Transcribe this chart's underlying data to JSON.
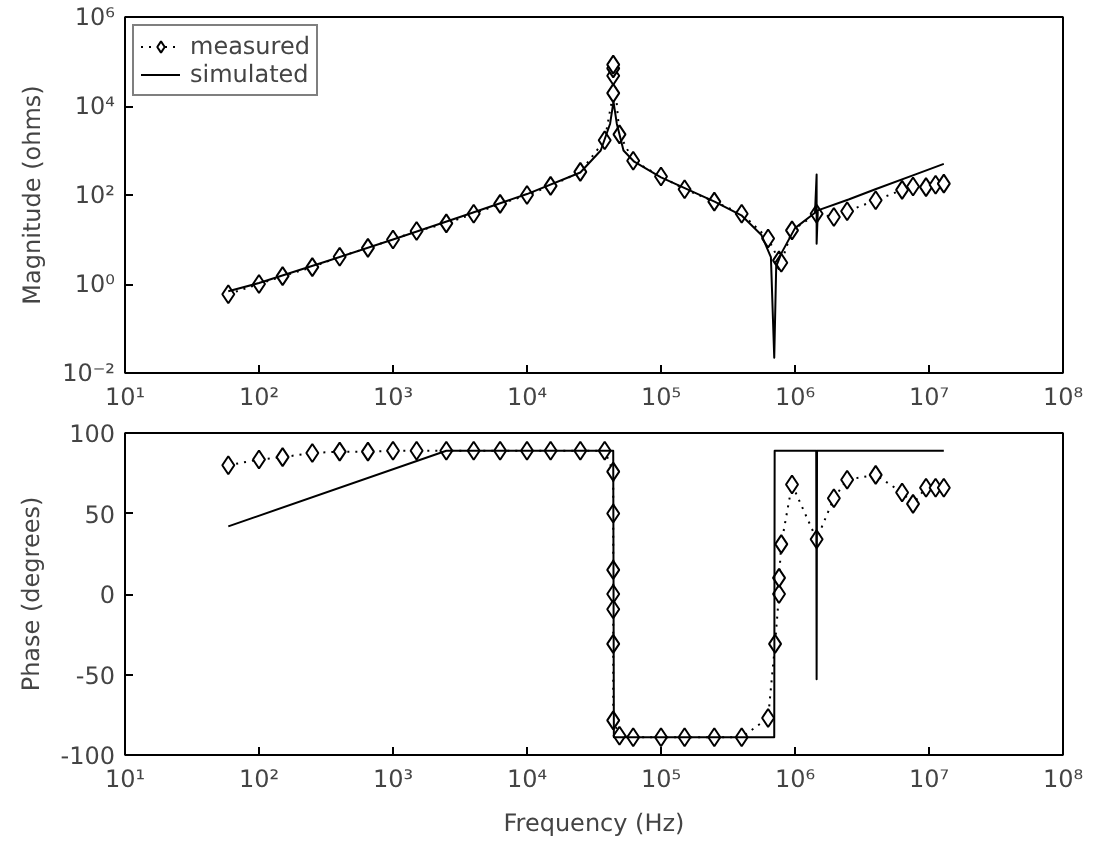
{
  "chart_data": [
    {
      "type": "line",
      "ylabel": "Magnitude (ohms)",
      "log": "xy",
      "legend": "top left",
      "xlim": [
        10,
        100000000
      ],
      "ylim": [
        0.01,
        1000000
      ],
      "xticks": [
        {
          "value": 10,
          "label": "10¹"
        },
        {
          "value": 100,
          "label": "10²"
        },
        {
          "value": 1000,
          "label": "10³"
        },
        {
          "value": 10000,
          "label": "10⁴"
        },
        {
          "value": 100000,
          "label": "10⁵"
        },
        {
          "value": 1000000,
          "label": "10⁶"
        },
        {
          "value": 10000000,
          "label": "10⁷"
        },
        {
          "value": 100000000,
          "label": "10⁸"
        }
      ],
      "yticks": [
        {
          "value": 0.01,
          "label": "10⁻²"
        },
        {
          "value": 1,
          "label": "10⁰"
        },
        {
          "value": 100,
          "label": "10²"
        },
        {
          "value": 10000,
          "label": "10⁴"
        },
        {
          "value": 1000000,
          "label": "10⁶"
        }
      ],
      "series": [
        {
          "name": "measured",
          "color": "#000000",
          "marker": "diamond",
          "line_style": "dotted",
          "x": [
            59,
            100,
            150,
            250,
            400,
            650,
            1000,
            1500,
            2500,
            4000,
            6300,
            10000,
            15000,
            25000,
            38000,
            44000,
            44000,
            44000,
            44000,
            49000,
            62000,
            100000,
            150000,
            250000,
            400000,
            630000,
            760000,
            790000,
            950000,
            1450000,
            1950000,
            2450000,
            4000000,
            6300000,
            7600000,
            9500000,
            11200000,
            12900000
          ],
          "values": [
            0.59,
            1.0,
            1.5,
            2.4,
            4.1,
            6.5,
            10,
            15.5,
            23,
            38,
            63,
            100,
            160,
            330,
            1700,
            19500,
            48000,
            70000,
            85000,
            2300,
            590,
            260,
            135,
            71,
            38,
            10.5,
            3.4,
            3.0,
            16,
            38,
            32,
            43,
            76,
            130,
            155,
            150,
            170,
            180
          ]
        },
        {
          "name": "simulated",
          "color": "#000000",
          "marker": "none",
          "line_style": "solid",
          "x": [
            59,
            100,
            316,
            1000,
            3160,
            10000,
            25000,
            35500,
            41700,
            44200,
            46800,
            52500,
            63100,
            100000,
            251000,
            398000,
            562000,
            661000,
            700000,
            724000,
            794000,
            1000000,
            1410000,
            1450000,
            1450000,
            1480000,
            2510000,
            3980000,
            7940000,
            12900000
          ],
          "values": [
            0.69,
            1.05,
            3.2,
            10,
            32,
            105,
            320,
            1000,
            4000,
            12600,
            4000,
            1000,
            560,
            250,
            71,
            35,
            12.6,
            4,
            0.022,
            2.5,
            5,
            18,
            40,
            290,
            8,
            45,
            79,
            135,
            290,
            500
          ]
        }
      ]
    },
    {
      "type": "line",
      "xlabel": "Frequency (Hz)",
      "ylabel": "Phase (degrees)",
      "log": "x",
      "xlim": [
        10,
        100000000
      ],
      "ylim": [
        -100,
        100
      ],
      "xticks": [
        {
          "value": 10,
          "label": "10¹"
        },
        {
          "value": 100,
          "label": "10²"
        },
        {
          "value": 1000,
          "label": "10³"
        },
        {
          "value": 10000,
          "label": "10⁴"
        },
        {
          "value": 100000,
          "label": "10⁵"
        },
        {
          "value": 1000000,
          "label": "10⁶"
        },
        {
          "value": 10000000,
          "label": "10⁷"
        },
        {
          "value": 100000000,
          "label": "10⁸"
        }
      ],
      "yticks": [
        -100,
        -50,
        0,
        50,
        100
      ],
      "series": [
        {
          "color": "#000000",
          "marker": "diamond",
          "line_style": "dotted",
          "x": [
            59,
            100,
            150,
            250,
            400,
            650,
            1000,
            1500,
            2500,
            4000,
            6300,
            10000,
            15000,
            25000,
            38000,
            44000,
            44000,
            44000,
            44000,
            44000,
            44000,
            44000,
            49000,
            62000,
            100000,
            150000,
            250000,
            400000,
            630000,
            710000,
            760000,
            760000,
            790000,
            950000,
            1450000,
            1950000,
            2450000,
            4000000,
            6300000,
            7600000,
            9500000,
            11200000,
            12900000
          ],
          "values": [
            80,
            83.5,
            85,
            87.6,
            88.4,
            88.4,
            89,
            89,
            89,
            89,
            89,
            89,
            89,
            89,
            89,
            76,
            50,
            15,
            0,
            -9.5,
            -31,
            -78.5,
            -88,
            -89,
            -89,
            -89,
            -89,
            -89,
            -77,
            -31,
            0,
            10,
            31,
            68,
            34,
            59.5,
            71,
            74,
            63,
            56,
            66,
            66,
            66
          ]
        },
        {
          "color": "#000000",
          "marker": "none",
          "line_style": "solid",
          "x": [
            59,
            2500,
            44000,
            44500,
            700000,
            705000,
            1440000,
            1450000,
            1460000,
            12900000
          ],
          "values": [
            42,
            89,
            89,
            -89,
            -89,
            89,
            89,
            -53,
            89,
            89
          ]
        }
      ]
    }
  ]
}
